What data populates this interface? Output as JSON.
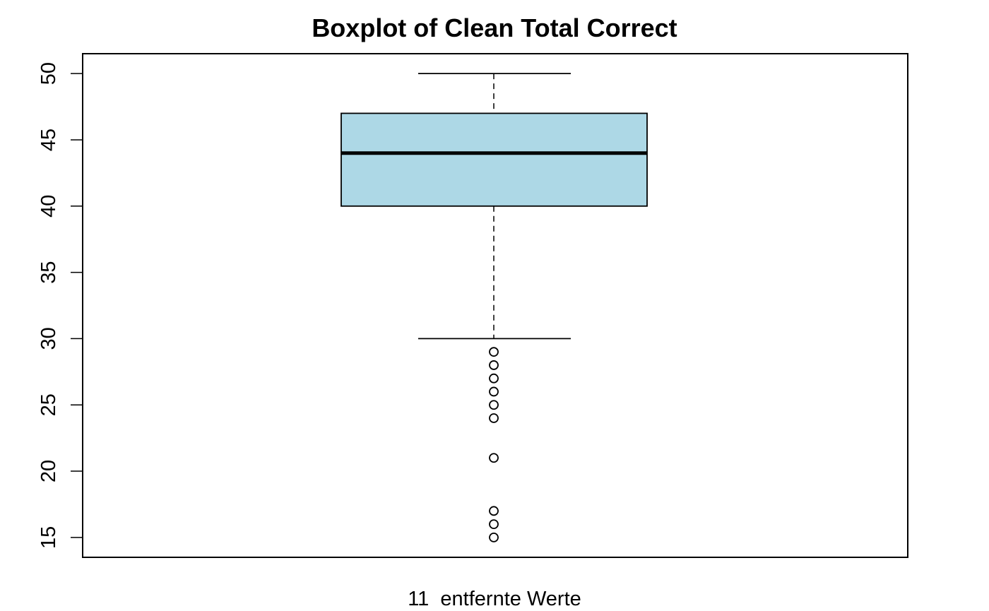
{
  "chart_data": {
    "type": "boxplot",
    "title": "Boxplot of Clean Total Correct",
    "xlabel": "11  entfernte Werte",
    "ylabel": "",
    "ylim": [
      13.5,
      51.5
    ],
    "yticks": [
      15,
      20,
      25,
      30,
      35,
      40,
      45,
      50
    ],
    "ytick_labels": [
      "15",
      "20",
      "25",
      "30",
      "35",
      "40",
      "45",
      "50"
    ],
    "box": {
      "whisker_low": 30,
      "q1": 40,
      "median": 44,
      "q3": 47,
      "whisker_high": 50
    },
    "outliers": [
      29,
      28,
      27,
      26,
      25,
      24,
      21,
      17,
      16,
      15
    ],
    "box_fill": "#ADD8E6",
    "grid": false,
    "legend": "none"
  }
}
